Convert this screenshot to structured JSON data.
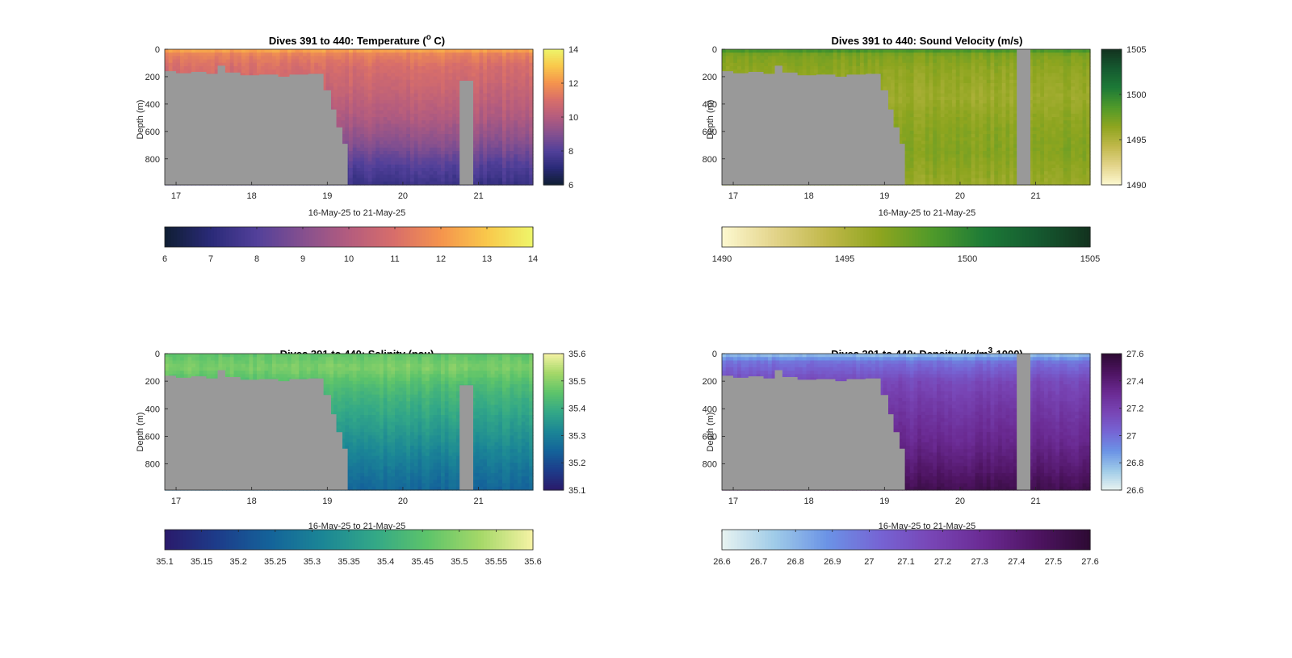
{
  "chart_data": [
    {
      "type": "heatmap",
      "title": "Dives 391 to 440: Temperature (",
      "title_sup": "o",
      "title_end": " C)",
      "xlabel": "16-May-25 to 21-May-25",
      "ylabel": "Depth (m)",
      "xlim": [
        16.85,
        21.72
      ],
      "ylim": [
        0,
        990
      ],
      "xticks": [
        "17",
        "18",
        "19",
        "20",
        "21"
      ],
      "yticks": [
        0,
        200,
        400,
        600,
        800
      ],
      "colorbar": {
        "min": 6,
        "max": 14,
        "ticks": [
          6,
          8,
          10,
          12,
          14
        ]
      },
      "hcolorbar": {
        "min": 6,
        "max": 14,
        "ticks": [
          "6",
          "7",
          "8",
          "9",
          "10",
          "11",
          "12",
          "13",
          "14"
        ]
      },
      "colormap": [
        "#0f1e33",
        "#2a2a78",
        "#52409a",
        "#85508f",
        "#b45c7e",
        "#d86e6a",
        "#f5944d",
        "#f9c84b",
        "#eef56a"
      ],
      "profile": [
        {
          "depth": 0,
          "value": 12.6
        },
        {
          "depth": 30,
          "value": 11.6
        },
        {
          "depth": 120,
          "value": 11.0
        },
        {
          "depth": 300,
          "value": 10.5
        },
        {
          "depth": 500,
          "value": 9.9
        },
        {
          "depth": 700,
          "value": 9.0
        },
        {
          "depth": 850,
          "value": 8.0
        },
        {
          "depth": 990,
          "value": 7.4
        }
      ]
    },
    {
      "type": "heatmap",
      "title": "Dives 391 to 440: Sound Velocity (m/s)",
      "title_sup": "",
      "title_end": "",
      "xlabel": "16-May-25 to 21-May-25",
      "ylabel": "Depth (m)",
      "xlim": [
        16.85,
        21.72
      ],
      "ylim": [
        0,
        990
      ],
      "xticks": [
        "17",
        "18",
        "19",
        "20",
        "21"
      ],
      "yticks": [
        0,
        200,
        400,
        600,
        800
      ],
      "colorbar": {
        "min": 1490,
        "max": 1505,
        "ticks": [
          1490,
          1495,
          1500,
          1505
        ]
      },
      "hcolorbar": {
        "min": 1490,
        "max": 1505,
        "ticks": [
          "1490",
          "1495",
          "1500",
          "1505"
        ]
      },
      "colormap": [
        "#fdf8d0",
        "#e3d48a",
        "#c0b84a",
        "#8ea51f",
        "#4f9a2a",
        "#1d7a37",
        "#155a30",
        "#13321f"
      ],
      "profile": [
        {
          "depth": 0,
          "value": 1499.5
        },
        {
          "depth": 40,
          "value": 1497.0
        },
        {
          "depth": 150,
          "value": 1496.3
        },
        {
          "depth": 350,
          "value": 1495.8
        },
        {
          "depth": 550,
          "value": 1496.5
        },
        {
          "depth": 750,
          "value": 1496.8
        },
        {
          "depth": 990,
          "value": 1496.0
        }
      ]
    },
    {
      "type": "heatmap",
      "title": "Dives 391 to 440: Salinity (psu)",
      "title_sup": "",
      "title_end": "",
      "xlabel": "16-May-25 to 21-May-25",
      "ylabel": "Depth (m)",
      "xlim": [
        16.85,
        21.72
      ],
      "ylim": [
        0,
        990
      ],
      "xticks": [
        "17",
        "18",
        "19",
        "20",
        "21"
      ],
      "yticks": [
        0,
        200,
        400,
        600,
        800
      ],
      "colorbar": {
        "min": 35.1,
        "max": 35.6,
        "ticks": [
          35.1,
          35.2,
          35.3,
          35.4,
          35.5,
          35.6
        ]
      },
      "hcolorbar": {
        "min": 35.1,
        "max": 35.6,
        "ticks": [
          "35.1",
          "35.15",
          "35.2",
          "35.25",
          "35.3",
          "35.35",
          "35.4",
          "35.45",
          "35.5",
          "35.55",
          "35.6"
        ]
      },
      "colormap": [
        "#2a1a6b",
        "#1d3c8a",
        "#14639a",
        "#1b8696",
        "#33a887",
        "#5ec46a",
        "#a5d868",
        "#f6f3a5"
      ],
      "profile": [
        {
          "depth": 0,
          "value": 35.46
        },
        {
          "depth": 100,
          "value": 35.49
        },
        {
          "depth": 250,
          "value": 35.43
        },
        {
          "depth": 450,
          "value": 35.38
        },
        {
          "depth": 650,
          "value": 35.33
        },
        {
          "depth": 850,
          "value": 35.28
        },
        {
          "depth": 990,
          "value": 35.25
        }
      ]
    },
    {
      "type": "heatmap",
      "title": "Dives 391 to 440: Density (kg/m",
      "title_sup": "3",
      "title_end": "-1000)",
      "xlabel": "16-May-25 to 21-May-25",
      "ylabel": "Depth (m)",
      "xlim": [
        16.85,
        21.72
      ],
      "ylim": [
        0,
        990
      ],
      "xticks": [
        "17",
        "18",
        "19",
        "20",
        "21"
      ],
      "yticks": [
        0,
        200,
        400,
        600,
        800
      ],
      "colorbar": {
        "min": 26.6,
        "max": 27.6,
        "ticks": [
          "26.6",
          "26.8",
          "27",
          "27.2",
          "27.4",
          "27.6"
        ]
      },
      "hcolorbar": {
        "min": 26.6,
        "max": 27.6,
        "ticks": [
          "26.6",
          "26.7",
          "26.8",
          "26.9",
          "27",
          "27.1",
          "27.2",
          "27.3",
          "27.4",
          "27.5",
          "27.6"
        ]
      },
      "colormap": [
        "#e8f3f1",
        "#9fcbe8",
        "#6b93e6",
        "#7664d4",
        "#7845b5",
        "#6a2a92",
        "#4e1462",
        "#2d0a33"
      ],
      "profile": [
        {
          "depth": 0,
          "value": 26.75
        },
        {
          "depth": 60,
          "value": 26.98
        },
        {
          "depth": 200,
          "value": 27.15
        },
        {
          "depth": 400,
          "value": 27.24
        },
        {
          "depth": 650,
          "value": 27.33
        },
        {
          "depth": 850,
          "value": 27.43
        },
        {
          "depth": 990,
          "value": 27.52
        }
      ]
    }
  ],
  "seafloor": {
    "color": "#999999",
    "depths": [
      {
        "x": 16.85,
        "depth": 160
      },
      {
        "x": 17.0,
        "depth": 175
      },
      {
        "x": 17.2,
        "depth": 165
      },
      {
        "x": 17.4,
        "depth": 180
      },
      {
        "x": 17.55,
        "depth": 120
      },
      {
        "x": 17.65,
        "depth": 170
      },
      {
        "x": 17.85,
        "depth": 190
      },
      {
        "x": 18.1,
        "depth": 185
      },
      {
        "x": 18.35,
        "depth": 200
      },
      {
        "x": 18.5,
        "depth": 185
      },
      {
        "x": 18.75,
        "depth": 180
      },
      {
        "x": 18.9,
        "depth": 180
      },
      {
        "x": 18.95,
        "depth": 300
      },
      {
        "x": 19.05,
        "depth": 440
      },
      {
        "x": 19.12,
        "depth": 570
      },
      {
        "x": 19.2,
        "depth": 690
      },
      {
        "x": 19.27,
        "depth": 990
      }
    ],
    "gap": {
      "x0": 20.75,
      "x1": 20.93,
      "depth": 230
    }
  }
}
